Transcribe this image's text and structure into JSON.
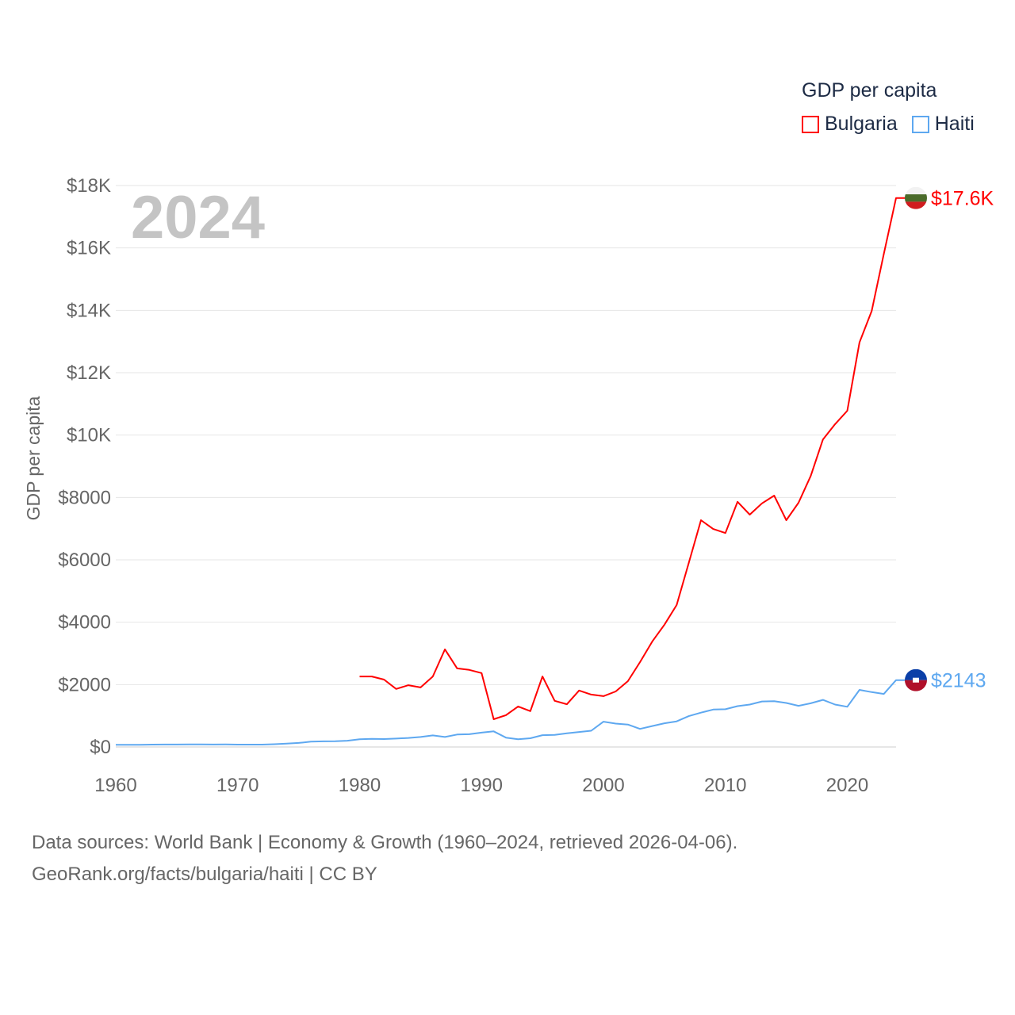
{
  "chart_data": {
    "type": "line",
    "title": "GDP per capita",
    "big_year_label": "2024",
    "ylabel": "GDP per capita",
    "xlabel": "",
    "xlim": [
      1960,
      2024
    ],
    "ylim": [
      0,
      18000
    ],
    "x_ticks": [
      1960,
      1970,
      1980,
      1990,
      2000,
      2010,
      2020
    ],
    "x_tick_labels": [
      "1960",
      "1970",
      "1980",
      "1990",
      "2000",
      "2010",
      "2020"
    ],
    "y_ticks": [
      0,
      2000,
      4000,
      6000,
      8000,
      10000,
      12000,
      14000,
      16000,
      18000
    ],
    "y_tick_labels": [
      "$0",
      "$2000",
      "$4000",
      "$6000",
      "$8000",
      "$10K",
      "$12K",
      "$14K",
      "$16K",
      "$18K"
    ],
    "grid": true,
    "legend": {
      "title": "GDP per capita",
      "placement": "top-right"
    },
    "series": [
      {
        "name": "Bulgaria",
        "color": "#ff0000",
        "end_label": "$17.6K",
        "x": [
          1980,
          1981,
          1982,
          1983,
          1984,
          1985,
          1986,
          1987,
          1988,
          1989,
          1990,
          1991,
          1992,
          1993,
          1994,
          1995,
          1996,
          1997,
          1998,
          1999,
          2000,
          2001,
          2002,
          2003,
          2004,
          2005,
          2006,
          2007,
          2008,
          2009,
          2010,
          2011,
          2012,
          2013,
          2014,
          2015,
          2016,
          2017,
          2018,
          2019,
          2020,
          2021,
          2022,
          2023,
          2024
        ],
        "values": [
          2260,
          2260,
          2160,
          1860,
          1980,
          1910,
          2260,
          3130,
          2520,
          2470,
          2370,
          890,
          1020,
          1300,
          1150,
          2260,
          1480,
          1370,
          1810,
          1680,
          1630,
          1780,
          2110,
          2720,
          3380,
          3920,
          4550,
          5900,
          7270,
          6990,
          6860,
          7860,
          7450,
          7810,
          8060,
          7270,
          7830,
          8690,
          9860,
          10350,
          10780,
          12970,
          13980,
          15810,
          17600
        ]
      },
      {
        "name": "Haiti",
        "color": "#5ea8f0",
        "end_label": "$2143",
        "x": [
          1960,
          1961,
          1962,
          1963,
          1964,
          1965,
          1966,
          1967,
          1968,
          1969,
          1970,
          1971,
          1972,
          1973,
          1974,
          1975,
          1976,
          1977,
          1978,
          1979,
          1980,
          1981,
          1982,
          1983,
          1984,
          1985,
          1986,
          1987,
          1988,
          1989,
          1990,
          1991,
          1992,
          1993,
          1994,
          1995,
          1996,
          1997,
          1998,
          1999,
          2000,
          2001,
          2002,
          2003,
          2004,
          2005,
          2006,
          2007,
          2008,
          2009,
          2010,
          2011,
          2012,
          2013,
          2014,
          2015,
          2016,
          2017,
          2018,
          2019,
          2020,
          2021,
          2022,
          2023,
          2024
        ],
        "values": [
          70,
          70,
          70,
          75,
          80,
          80,
          82,
          82,
          80,
          82,
          75,
          75,
          75,
          90,
          110,
          130,
          170,
          180,
          185,
          200,
          250,
          260,
          255,
          270,
          290,
          320,
          370,
          320,
          400,
          410,
          460,
          500,
          300,
          250,
          280,
          380,
          390,
          440,
          480,
          520,
          810,
          750,
          720,
          580,
          670,
          760,
          820,
          990,
          1100,
          1200,
          1210,
          1310,
          1360,
          1460,
          1470,
          1410,
          1320,
          1400,
          1510,
          1360,
          1290,
          1830,
          1760,
          1700,
          2143
        ]
      }
    ]
  },
  "footer": {
    "line1": "Data sources: World Bank | Economy & Growth (1960–2024, retrieved 2026-04-06).",
    "line2": "GeoRank.org/facts/bulgaria/haiti | CC BY"
  }
}
